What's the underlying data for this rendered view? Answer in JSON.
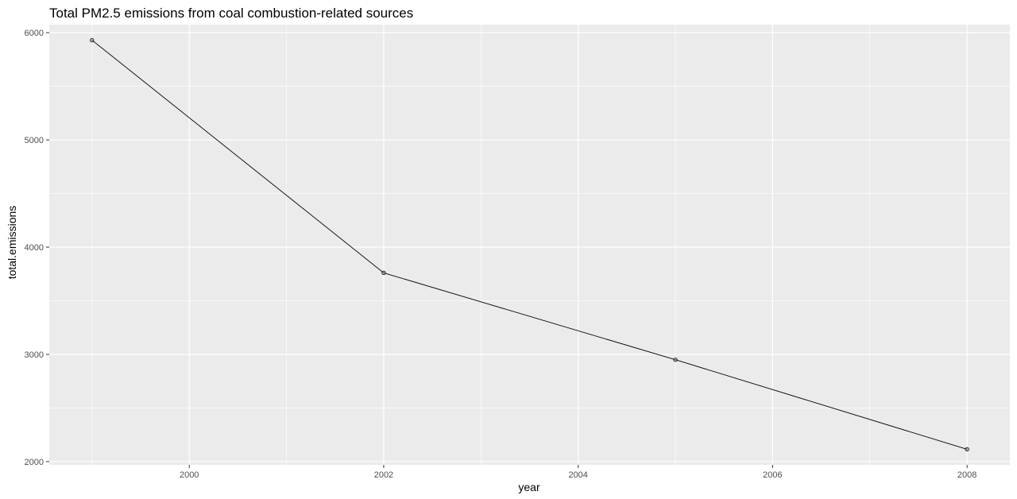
{
  "chart_data": {
    "type": "line",
    "title": "Total PM2.5 emissions from coal combustion-related sources",
    "xlabel": "year",
    "ylabel": "total.emissions",
    "x": [
      1999,
      2002,
      2005,
      2008
    ],
    "series": [
      {
        "values": [
          5930,
          3760,
          2950,
          2115
        ]
      }
    ],
    "xlim": [
      1998.56,
      2008.44
    ],
    "ylim": [
      1970,
      6075
    ],
    "xticks": [
      2000,
      2002,
      2004,
      2006,
      2008
    ],
    "yticks": [
      2000,
      3000,
      4000,
      5000,
      6000
    ],
    "grid": true,
    "legend": "none",
    "colors": {
      "panel": "#ebebeb",
      "grid": "#ffffff",
      "line": "#000000",
      "point": "#000000",
      "tick_text": "#4d4d4d"
    }
  }
}
